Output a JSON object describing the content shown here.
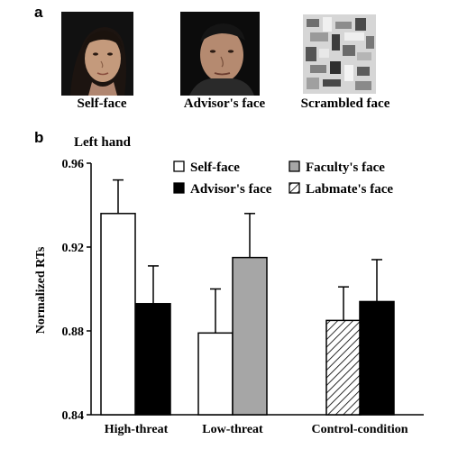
{
  "panel_a": {
    "letter": "a",
    "faces": [
      {
        "caption": "Self-face",
        "icon": "self-face-photo"
      },
      {
        "caption": "Advisor's face",
        "icon": "advisor-face-photo"
      },
      {
        "caption": "Scrambled face",
        "icon": "scrambled-face-image"
      }
    ]
  },
  "panel_b": {
    "letter": "b"
  },
  "chart_data": {
    "type": "bar",
    "title": "Left hand",
    "xlabel": "",
    "ylabel": "Normalized RTs",
    "ylim": [
      0.84,
      0.96
    ],
    "yticks": [
      "0.84",
      "0.88",
      "0.92",
      "0.96"
    ],
    "categories": [
      "High-threat",
      "Low-threat",
      "Control-condition"
    ],
    "grid": false,
    "legend_position": "top-right",
    "legend": [
      {
        "label": "Self-face",
        "style": "white"
      },
      {
        "label": "Faculty's face",
        "style": "gray"
      },
      {
        "label": "Advisor's face",
        "style": "black"
      },
      {
        "label": "Labmate's face",
        "style": "hatched"
      }
    ],
    "bars": [
      {
        "category": "High-threat",
        "series": "Self-face",
        "value": 0.936,
        "error": 0.016,
        "style": "white"
      },
      {
        "category": "High-threat",
        "series": "Advisor's face",
        "value": 0.893,
        "error": 0.018,
        "style": "black"
      },
      {
        "category": "Low-threat",
        "series": "Self-face",
        "value": 0.879,
        "error": 0.021,
        "style": "white"
      },
      {
        "category": "Low-threat",
        "series": "Faculty's face",
        "value": 0.915,
        "error": 0.021,
        "style": "gray"
      },
      {
        "category": "Control-condition",
        "series": "Labmate's face",
        "value": 0.885,
        "error": 0.016,
        "style": "hatched"
      },
      {
        "category": "Control-condition",
        "series": "Advisor's face",
        "value": 0.894,
        "error": 0.02,
        "style": "black"
      }
    ],
    "colors": {
      "white": "#ffffff",
      "gray": "#a6a6a6",
      "black": "#000000"
    }
  }
}
